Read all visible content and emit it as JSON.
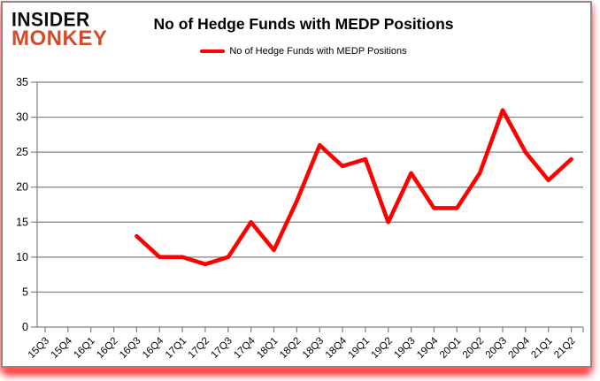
{
  "logo": {
    "line1": "INSIDER",
    "line2": "MONKEY",
    "monkey_color": "#d44b2c"
  },
  "header": {
    "title": "No of Hedge Funds with MEDP Positions"
  },
  "legend": {
    "label": "No of Hedge Funds with MEDP Positions",
    "line_color": "#fe0000"
  },
  "chart_data": {
    "type": "line",
    "title": "No of Hedge Funds with MEDP Positions",
    "xlabel": "",
    "ylabel": "",
    "ylim": [
      0,
      35
    ],
    "yticks": [
      0,
      5,
      10,
      15,
      20,
      25,
      30,
      35
    ],
    "grid": true,
    "gridline_color": "#808080",
    "axis_color": "#808080",
    "tick_label_color": "#000000",
    "legend_position": "top",
    "categories": [
      "15Q3",
      "15Q4",
      "16Q1",
      "16Q2",
      "16Q3",
      "16Q4",
      "17Q1",
      "17Q2",
      "17Q3",
      "17Q4",
      "18Q1",
      "18Q2",
      "18Q3",
      "18Q4",
      "19Q1",
      "19Q2",
      "19Q3",
      "19Q4",
      "20Q1",
      "20Q2",
      "20Q3",
      "20Q4",
      "21Q1",
      "21Q2"
    ],
    "series": [
      {
        "name": "No of Hedge Funds with MEDP Positions",
        "color": "#fe0000",
        "values": [
          null,
          null,
          null,
          null,
          13,
          10,
          10,
          9,
          10,
          15,
          11,
          18,
          26,
          23,
          24,
          15,
          22,
          17,
          17,
          22,
          31,
          25,
          21,
          24
        ]
      }
    ]
  }
}
